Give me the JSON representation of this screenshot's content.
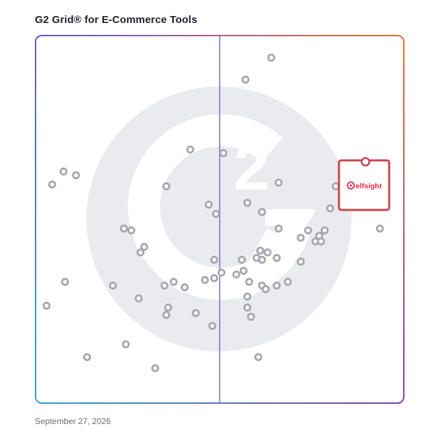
{
  "title": "G2 Grid® for E-Commerce Tools",
  "date": "September 27, 2026",
  "watermark_text": "2",
  "colors": {
    "grid_top_left": "#5b5bd6",
    "grid_top_right": "#ef6a2b",
    "grid_bottom_left": "#2f9fd8",
    "grid_bottom_right": "#7d3fb0",
    "divider": "#8a63c8",
    "point": "#a6a6ad",
    "watermark": "#e9ebef",
    "highlight": "#c9474d",
    "brand": "#e2264d"
  },
  "chart_data": {
    "type": "scatter",
    "title": "G2 Grid® for E-Commerce Tools",
    "xlabel": "",
    "ylabel": "",
    "xlim": [
      0,
      100
    ],
    "ylim": [
      0,
      100
    ],
    "grid": "quadrants",
    "highlight": {
      "name": "elfsight",
      "x": 82,
      "y": 66
    },
    "series": [
      {
        "values": [
          {
            "x": 64,
            "y": 94
          },
          {
            "x": 57,
            "y": 88
          },
          {
            "x": 42,
            "y": 69
          },
          {
            "x": 51,
            "y": 68
          },
          {
            "x": 7.6,
            "y": 63
          },
          {
            "x": 11,
            "y": 62
          },
          {
            "x": 4.5,
            "y": 59.5
          },
          {
            "x": 35.5,
            "y": 59
          },
          {
            "x": 66,
            "y": 60
          },
          {
            "x": 47,
            "y": 54
          },
          {
            "x": 49,
            "y": 51.5
          },
          {
            "x": 57.5,
            "y": 54.5
          },
          {
            "x": 61.5,
            "y": 52
          },
          {
            "x": 81.5,
            "y": 59
          },
          {
            "x": 80,
            "y": 53
          },
          {
            "x": 24,
            "y": 47.5
          },
          {
            "x": 26,
            "y": 47
          },
          {
            "x": 66,
            "y": 47.5
          },
          {
            "x": 74,
            "y": 47
          },
          {
            "x": 77,
            "y": 45.5
          },
          {
            "x": 78.5,
            "y": 47
          },
          {
            "x": 72,
            "y": 45
          },
          {
            "x": 76,
            "y": 44
          },
          {
            "x": 77.5,
            "y": 44
          },
          {
            "x": 93.5,
            "y": 47.5
          },
          {
            "x": 29.5,
            "y": 42.5
          },
          {
            "x": 28.5,
            "y": 41
          },
          {
            "x": 61,
            "y": 41.5
          },
          {
            "x": 63,
            "y": 41
          },
          {
            "x": 60,
            "y": 39.5
          },
          {
            "x": 56,
            "y": 39
          },
          {
            "x": 61.5,
            "y": 39
          },
          {
            "x": 65.5,
            "y": 39.5
          },
          {
            "x": 72,
            "y": 38.5
          },
          {
            "x": 48.5,
            "y": 39
          },
          {
            "x": 56.5,
            "y": 36
          },
          {
            "x": 54.5,
            "y": 35
          },
          {
            "x": 50.5,
            "y": 35.5
          },
          {
            "x": 48.5,
            "y": 34
          },
          {
            "x": 46,
            "y": 33.5
          },
          {
            "x": 8,
            "y": 33
          },
          {
            "x": 37.5,
            "y": 33
          },
          {
            "x": 35,
            "y": 32
          },
          {
            "x": 21,
            "y": 32
          },
          {
            "x": 40.5,
            "y": 31.5
          },
          {
            "x": 58,
            "y": 33
          },
          {
            "x": 61.5,
            "y": 32
          },
          {
            "x": 62.5,
            "y": 31
          },
          {
            "x": 65.5,
            "y": 32
          },
          {
            "x": 68.5,
            "y": 33
          },
          {
            "x": 57.5,
            "y": 29
          },
          {
            "x": 28,
            "y": 28.5
          },
          {
            "x": 3,
            "y": 26.5
          },
          {
            "x": 36,
            "y": 26
          },
          {
            "x": 35.5,
            "y": 24
          },
          {
            "x": 43.5,
            "y": 24.5
          },
          {
            "x": 57.5,
            "y": 26
          },
          {
            "x": 58.5,
            "y": 23.5
          },
          {
            "x": 48,
            "y": 21
          },
          {
            "x": 24.5,
            "y": 16
          },
          {
            "x": 14,
            "y": 12.5
          },
          {
            "x": 60.5,
            "y": 12.5
          },
          {
            "x": 32.5,
            "y": 9.5
          }
        ]
      }
    ]
  }
}
